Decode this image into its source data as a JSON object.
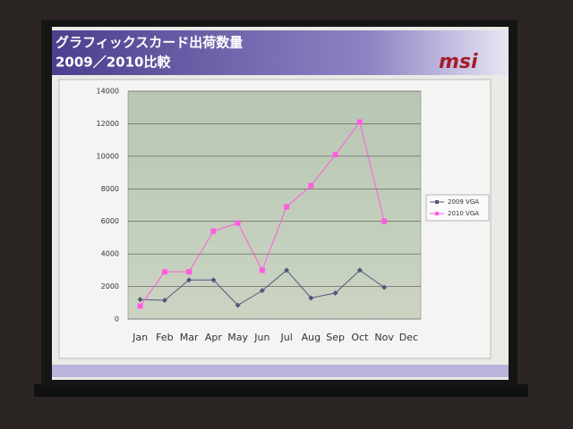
{
  "header": {
    "title": "グラフィックスカード出荷数量",
    "subtitle": "2009／2010比較",
    "logo": "msi"
  },
  "chart_data": {
    "type": "line",
    "categories": [
      "Jan",
      "Feb",
      "Mar",
      "Apr",
      "May",
      "Jun",
      "Jul",
      "Aug",
      "Sep",
      "Oct",
      "Nov",
      "Dec"
    ],
    "series": [
      {
        "name": "2009 VGA",
        "color": "#55557f",
        "values": [
          1200,
          1150,
          2400,
          2400,
          850,
          1750,
          3000,
          1300,
          1600,
          3000,
          1950,
          null
        ]
      },
      {
        "name": "2010 VGA",
        "color": "#ff5ce0",
        "values": [
          800,
          2900,
          2900,
          5400,
          5900,
          3000,
          6900,
          8200,
          10100,
          12100,
          6000,
          null
        ]
      }
    ],
    "ylim": [
      0,
      14000
    ],
    "yticks": [
      0,
      2000,
      4000,
      6000,
      8000,
      10000,
      12000,
      14000
    ],
    "grid": true,
    "legend": "right"
  }
}
